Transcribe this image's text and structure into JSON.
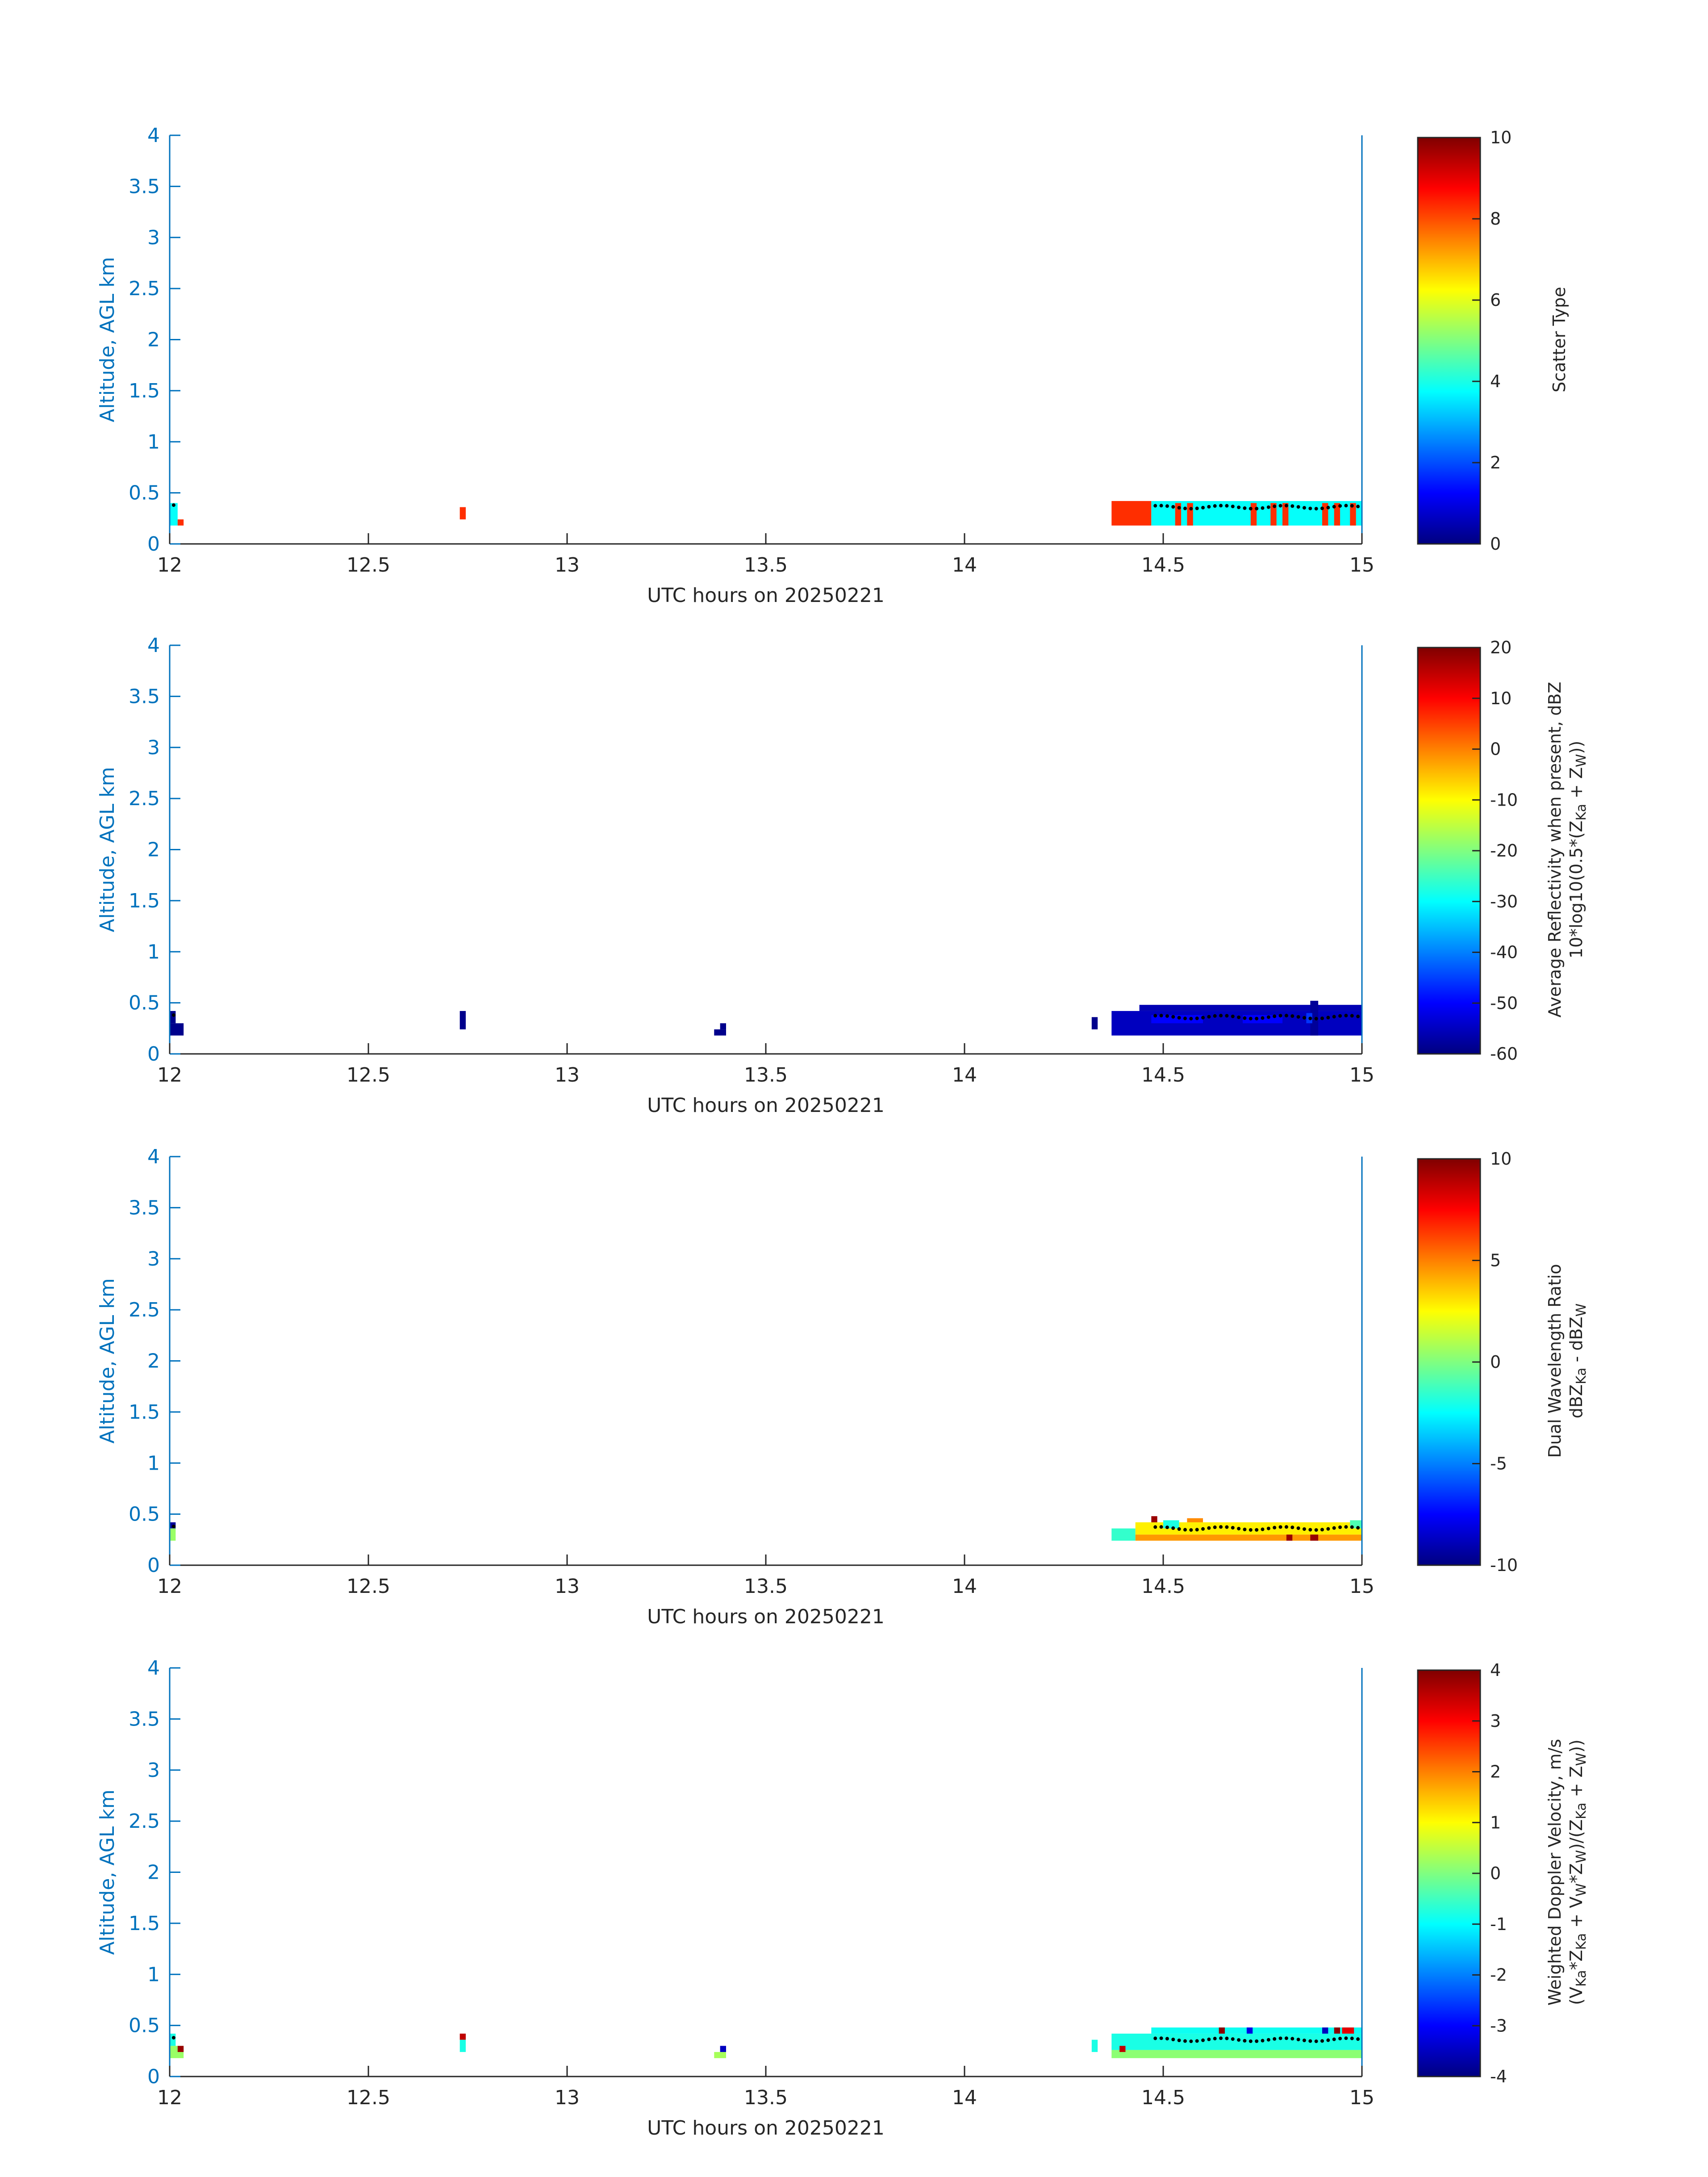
{
  "chart_data": [
    {
      "type": "heatmap",
      "xlabel": "UTC hours on 20250221",
      "ylabel": "Altitude, AGL km",
      "xlim": [
        12,
        15
      ],
      "ylim": [
        0,
        4
      ],
      "xticks": [
        "12",
        "12.5",
        "13",
        "13.5",
        "14",
        "14.5",
        "15"
      ],
      "yticks": [
        "0",
        "0.5",
        "1",
        "1.5",
        "2",
        "2.5",
        "3",
        "3.5",
        "4"
      ],
      "colorbar": {
        "title_lines": [
          "Scatter Type"
        ],
        "range": [
          0,
          10
        ],
        "ticks": [
          "0",
          "2",
          "4",
          "6",
          "8",
          "10"
        ]
      },
      "cells": [
        {
          "x0": 12.0,
          "x1": 12.02,
          "y0": 0.18,
          "y1": 0.4,
          "v": 3.8
        },
        {
          "x0": 12.02,
          "x1": 12.035,
          "y0": 0.18,
          "y1": 0.24,
          "v": 8.3
        },
        {
          "x0": 12.73,
          "x1": 12.745,
          "y0": 0.24,
          "y1": 0.36,
          "v": 8.3
        },
        {
          "x0": 14.37,
          "x1": 14.47,
          "y0": 0.18,
          "y1": 0.42,
          "v": 8.3
        },
        {
          "x0": 14.47,
          "x1": 15.0,
          "y0": 0.18,
          "y1": 0.42,
          "v": 3.8
        },
        {
          "x0": 14.53,
          "x1": 14.545,
          "y0": 0.18,
          "y1": 0.4,
          "v": 8.3
        },
        {
          "x0": 14.56,
          "x1": 14.575,
          "y0": 0.18,
          "y1": 0.4,
          "v": 8.3
        },
        {
          "x0": 14.72,
          "x1": 14.735,
          "y0": 0.18,
          "y1": 0.4,
          "v": 8.3
        },
        {
          "x0": 14.77,
          "x1": 14.785,
          "y0": 0.18,
          "y1": 0.4,
          "v": 8.3
        },
        {
          "x0": 14.8,
          "x1": 14.815,
          "y0": 0.18,
          "y1": 0.4,
          "v": 8.3
        },
        {
          "x0": 14.9,
          "x1": 14.915,
          "y0": 0.18,
          "y1": 0.4,
          "v": 8.3
        },
        {
          "x0": 14.93,
          "x1": 14.945,
          "y0": 0.18,
          "y1": 0.4,
          "v": 8.3
        },
        {
          "x0": 14.97,
          "x1": 14.985,
          "y0": 0.18,
          "y1": 0.4,
          "v": 8.3
        }
      ]
    },
    {
      "type": "heatmap",
      "xlabel": "UTC hours on 20250221",
      "ylabel": "Altitude, AGL km",
      "xlim": [
        12,
        15
      ],
      "ylim": [
        0,
        4
      ],
      "xticks": [
        "12",
        "12.5",
        "13",
        "13.5",
        "14",
        "14.5",
        "15"
      ],
      "yticks": [
        "0",
        "0.5",
        "1",
        "1.5",
        "2",
        "2.5",
        "3",
        "3.5",
        "4"
      ],
      "colorbar": {
        "title_lines": [
          "Average Reflectivity when present, dBZ",
          "10*log10(0.5*(Z",
          "Ka",
          " + Z",
          "W",
          "))"
        ],
        "range": [
          -60,
          20
        ],
        "ticks": [
          "-60",
          "-50",
          "-40",
          "-30",
          "-20",
          "-10",
          "0",
          "10",
          "20"
        ]
      },
      "cells": [
        {
          "x0": 12.0,
          "x1": 12.035,
          "y0": 0.18,
          "y1": 0.3,
          "v": -59
        },
        {
          "x0": 12.0,
          "x1": 12.015,
          "y0": 0.3,
          "y1": 0.42,
          "v": -59
        },
        {
          "x0": 12.73,
          "x1": 12.745,
          "y0": 0.24,
          "y1": 0.42,
          "v": -59
        },
        {
          "x0": 13.37,
          "x1": 13.4,
          "y0": 0.18,
          "y1": 0.24,
          "v": -59
        },
        {
          "x0": 13.385,
          "x1": 13.4,
          "y0": 0.24,
          "y1": 0.3,
          "v": -59
        },
        {
          "x0": 14.32,
          "x1": 14.335,
          "y0": 0.24,
          "y1": 0.36,
          "v": -59
        },
        {
          "x0": 14.37,
          "x1": 15.0,
          "y0": 0.18,
          "y1": 0.42,
          "v": -55
        },
        {
          "x0": 14.44,
          "x1": 15.0,
          "y0": 0.42,
          "y1": 0.48,
          "v": -56
        },
        {
          "x0": 14.47,
          "x1": 14.6,
          "y0": 0.3,
          "y1": 0.38,
          "v": -50
        },
        {
          "x0": 14.7,
          "x1": 14.8,
          "y0": 0.3,
          "y1": 0.38,
          "v": -50
        },
        {
          "x0": 14.87,
          "x1": 14.89,
          "y0": 0.18,
          "y1": 0.52,
          "v": -58
        },
        {
          "x0": 14.86,
          "x1": 14.875,
          "y0": 0.3,
          "y1": 0.4,
          "v": -46
        }
      ]
    },
    {
      "type": "heatmap",
      "xlabel": "UTC hours on 20250221",
      "ylabel": "Altitude, AGL km",
      "xlim": [
        12,
        15
      ],
      "ylim": [
        0,
        4
      ],
      "xticks": [
        "12",
        "12.5",
        "13",
        "13.5",
        "14",
        "14.5",
        "15"
      ],
      "yticks": [
        "0",
        "0.5",
        "1",
        "1.5",
        "2",
        "2.5",
        "3",
        "3.5",
        "4"
      ],
      "colorbar": {
        "title_lines": [
          "Dual Wavelength Ratio",
          "dBZ",
          "Ka",
          " - dBZ",
          "W"
        ],
        "range": [
          -10,
          10
        ],
        "ticks": [
          "-10",
          "-5",
          "0",
          "5",
          "10"
        ]
      },
      "cells": [
        {
          "x0": 12.0,
          "x1": 12.015,
          "y0": 0.36,
          "y1": 0.42,
          "v": -9.5
        },
        {
          "x0": 12.0,
          "x1": 12.015,
          "y0": 0.24,
          "y1": 0.36,
          "v": 0.5
        },
        {
          "x0": 14.37,
          "x1": 14.43,
          "y0": 0.24,
          "y1": 0.36,
          "v": -1.5
        },
        {
          "x0": 14.43,
          "x1": 15.0,
          "y0": 0.24,
          "y1": 0.3,
          "v": 4.5
        },
        {
          "x0": 14.43,
          "x1": 15.0,
          "y0": 0.3,
          "y1": 0.42,
          "v": 2.8
        },
        {
          "x0": 14.47,
          "x1": 14.485,
          "y0": 0.42,
          "y1": 0.48,
          "v": 9.5
        },
        {
          "x0": 14.5,
          "x1": 14.54,
          "y0": 0.36,
          "y1": 0.44,
          "v": -2
        },
        {
          "x0": 14.56,
          "x1": 14.6,
          "y0": 0.42,
          "y1": 0.46,
          "v": 4.8
        },
        {
          "x0": 14.81,
          "x1": 14.825,
          "y0": 0.24,
          "y1": 0.3,
          "v": 9.5
        },
        {
          "x0": 14.87,
          "x1": 14.89,
          "y0": 0.24,
          "y1": 0.3,
          "v": 9.5
        },
        {
          "x0": 14.97,
          "x1": 15.0,
          "y0": 0.36,
          "y1": 0.44,
          "v": -1
        }
      ]
    },
    {
      "type": "heatmap",
      "xlabel": "UTC hours on 20250221",
      "ylabel": "Altitude, AGL km",
      "xlim": [
        12,
        15
      ],
      "ylim": [
        0,
        4
      ],
      "xticks": [
        "12",
        "12.5",
        "13",
        "13.5",
        "14",
        "14.5",
        "15"
      ],
      "yticks": [
        "0",
        "0.5",
        "1",
        "1.5",
        "2",
        "2.5",
        "3",
        "3.5",
        "4"
      ],
      "colorbar": {
        "title_lines": [
          "Weighted Doppler Velocity, m/s",
          "(V",
          "Ka",
          "*Z",
          "Ka",
          " + V",
          "W",
          "*Z",
          "W",
          ")/(Z",
          "Ka",
          " + Z",
          "W",
          "))"
        ],
        "range": [
          -4,
          4
        ],
        "ticks": [
          "-4",
          "-3",
          "-2",
          "-1",
          "0",
          "1",
          "2",
          "3",
          "4"
        ]
      },
      "cells": [
        {
          "x0": 12.0,
          "x1": 12.035,
          "y0": 0.18,
          "y1": 0.3,
          "v": 0.2
        },
        {
          "x0": 12.0,
          "x1": 12.015,
          "y0": 0.3,
          "y1": 0.42,
          "v": -0.8
        },
        {
          "x0": 12.02,
          "x1": 12.035,
          "y0": 0.24,
          "y1": 0.3,
          "v": 3.8
        },
        {
          "x0": 12.73,
          "x1": 12.745,
          "y0": 0.24,
          "y1": 0.36,
          "v": -0.8
        },
        {
          "x0": 12.73,
          "x1": 12.745,
          "y0": 0.36,
          "y1": 0.42,
          "v": 3.5
        },
        {
          "x0": 13.37,
          "x1": 13.4,
          "y0": 0.18,
          "y1": 0.24,
          "v": 0.3
        },
        {
          "x0": 13.385,
          "x1": 13.4,
          "y0": 0.24,
          "y1": 0.3,
          "v": -3.5
        },
        {
          "x0": 14.32,
          "x1": 14.335,
          "y0": 0.24,
          "y1": 0.36,
          "v": -0.8
        },
        {
          "x0": 14.37,
          "x1": 15.0,
          "y0": 0.18,
          "y1": 0.26,
          "v": 0.1
        },
        {
          "x0": 14.37,
          "x1": 15.0,
          "y0": 0.26,
          "y1": 0.42,
          "v": -0.8
        },
        {
          "x0": 14.47,
          "x1": 15.0,
          "y0": 0.42,
          "y1": 0.48,
          "v": -0.9
        },
        {
          "x0": 14.39,
          "x1": 14.405,
          "y0": 0.24,
          "y1": 0.3,
          "v": 3.5
        },
        {
          "x0": 14.64,
          "x1": 14.655,
          "y0": 0.42,
          "y1": 0.48,
          "v": 3.9
        },
        {
          "x0": 14.71,
          "x1": 14.725,
          "y0": 0.42,
          "y1": 0.48,
          "v": -3.2
        },
        {
          "x0": 14.93,
          "x1": 14.945,
          "y0": 0.42,
          "y1": 0.48,
          "v": 3.9
        },
        {
          "x0": 14.95,
          "x1": 14.98,
          "y0": 0.42,
          "y1": 0.48,
          "v": 3.2
        },
        {
          "x0": 14.9,
          "x1": 14.915,
          "y0": 0.42,
          "y1": 0.48,
          "v": -3.5
        }
      ]
    }
  ]
}
